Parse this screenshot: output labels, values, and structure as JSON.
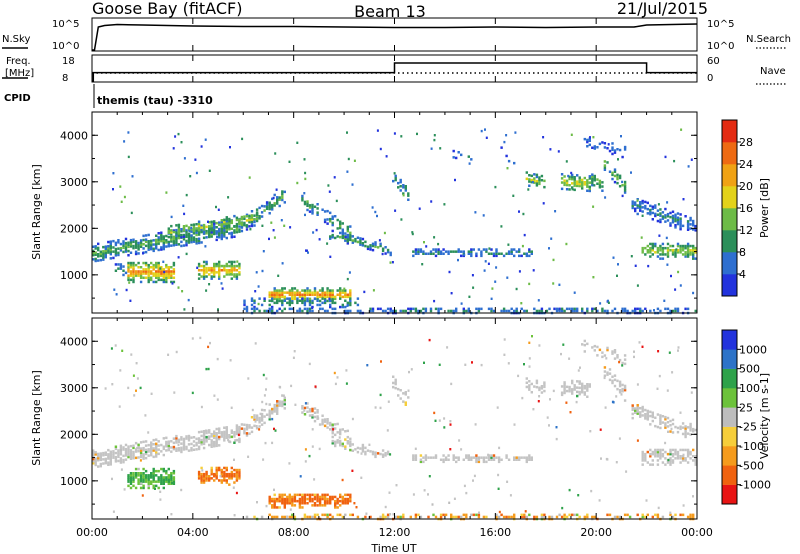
{
  "header": {
    "station": "Goose Bay (fitACF)",
    "beam": "Beam 13",
    "date": "21/Jul/2015"
  },
  "noise_panel": {
    "left_label": "N.Sky",
    "right_label": "N.Search",
    "ticks": [
      "10^5",
      "10^0"
    ]
  },
  "freq_panel": {
    "left_label_1": "Freq.",
    "left_label_2": "[MHz]",
    "right_label": "Nave",
    "left_ticks": [
      "18",
      "8"
    ],
    "right_ticks": [
      "60",
      "0"
    ]
  },
  "cpid": {
    "label": "CPID",
    "value": "themis (tau) -3310"
  },
  "x_axis": {
    "title": "Time UT",
    "ticks": [
      "00:00",
      "04:00",
      "08:00",
      "12:00",
      "16:00",
      "20:00",
      "00:00"
    ],
    "range_hours": [
      0,
      24
    ]
  },
  "y_axis_label": "Slant Range [km]",
  "y_ticks": [
    "1000",
    "2000",
    "3000",
    "4000"
  ],
  "colors": {
    "power": [
      "#2233dd",
      "#2e6fd0",
      "#2b8f5a",
      "#6dbb47",
      "#e3d21a",
      "#f0a214",
      "#ee6a12",
      "#e42b12"
    ],
    "velocity": [
      "#e81414",
      "#f0620f",
      "#f59b1c",
      "#f6ce3a",
      "#bdbdbd",
      "#6cc23a",
      "#2ea24a",
      "#2d73c8",
      "#2233dd"
    ],
    "gray": "#c4c4c4"
  },
  "power_colorbar": {
    "label": "Power [dB]",
    "ticks": [
      "4",
      "8",
      "12",
      "16",
      "20",
      "24",
      "28"
    ]
  },
  "velocity_colorbar": {
    "label": "Velocity [m s-1]",
    "ticks": [
      "1000",
      "500",
      "100",
      "25",
      "-25",
      "-100",
      "-500",
      "-1000"
    ]
  },
  "chart_data": [
    {
      "type": "line",
      "title": "N.Sky / N.Search",
      "x": [
        0.0,
        0.1,
        0.25,
        0.5,
        1,
        2,
        4,
        6,
        8,
        10,
        12,
        14,
        16,
        18,
        20,
        21.5,
        22,
        23,
        24
      ],
      "values": [
        0.0,
        0.0,
        4.6,
        4.9,
        5.1,
        5.0,
        4.8,
        4.7,
        4.7,
        4.6,
        4.5,
        4.5,
        4.6,
        4.5,
        4.6,
        4.6,
        5.0,
        5.1,
        5.2
      ],
      "ylim": [
        0,
        6
      ],
      "ylabel": "N.Sky"
    },
    {
      "type": "line",
      "title": "Freq / Nave",
      "series": [
        {
          "name": "Freq.",
          "x": [
            0.0,
            0.05,
            0.05,
            12.0,
            12.0,
            22.0,
            22.0,
            24.0
          ],
          "values": [
            8,
            8,
            11.5,
            11.5,
            15.5,
            15.5,
            11.5,
            11.5
          ]
        },
        {
          "name": "Nave",
          "x": [
            0,
            24
          ],
          "values": [
            20,
            20
          ]
        }
      ],
      "ylim_left": [
        8,
        18
      ],
      "ylim_right": [
        0,
        60
      ]
    },
    {
      "type": "heatmap",
      "title": "Power",
      "x_range_hours": [
        0,
        24
      ],
      "y_range_km": [
        180,
        4500
      ],
      "colorbar_label": "Power [dB]",
      "value_range": [
        0,
        32
      ],
      "features": [
        {
          "t": [
            0.0,
            5.8
          ],
          "r0": 1450,
          "r1": 2000,
          "w": 180,
          "v": 10,
          "d": 0.85
        },
        {
          "t": [
            5.8,
            7.6
          ],
          "r0": 2000,
          "r1": 2700,
          "w": 160,
          "v": 9,
          "d": 0.6
        },
        {
          "t": [
            3.0,
            6.5
          ],
          "r0": 1900,
          "r1": 2200,
          "w": 150,
          "v": 14,
          "d": 0.7
        },
        {
          "t": [
            1.4,
            3.3
          ],
          "r0": 1050,
          "r1": 1050,
          "w": 220,
          "v": 22,
          "d": 0.95
        },
        {
          "t": [
            0.9,
            1.4
          ],
          "r0": 1100,
          "r1": 1100,
          "w": 120,
          "v": 8,
          "d": 0.5
        },
        {
          "t": [
            4.2,
            5.8
          ],
          "r0": 1080,
          "r1": 1080,
          "w": 180,
          "v": 20,
          "d": 0.9
        },
        {
          "t": [
            7.0,
            10.2
          ],
          "r0": 560,
          "r1": 560,
          "w": 140,
          "v": 22,
          "d": 0.95
        },
        {
          "t": [
            6.0,
            10.5
          ],
          "r0": 400,
          "r1": 400,
          "w": 110,
          "v": 8,
          "d": 0.5
        },
        {
          "t": [
            6.0,
            24.0
          ],
          "r0": 220,
          "r1": 220,
          "w": 60,
          "v": 6,
          "d": 0.6
        },
        {
          "t": [
            8.3,
            10.2
          ],
          "r0": 2600,
          "r1": 1900,
          "w": 150,
          "v": 10,
          "d": 0.6
        },
        {
          "t": [
            9.4,
            11.8
          ],
          "r0": 1850,
          "r1": 1500,
          "w": 90,
          "v": 9,
          "d": 0.7
        },
        {
          "t": [
            12.7,
            17.5
          ],
          "r0": 1460,
          "r1": 1460,
          "w": 70,
          "v": 8,
          "d": 0.75
        },
        {
          "t": [
            11.9,
            12.5
          ],
          "r0": 3100,
          "r1": 2700,
          "w": 150,
          "v": 8,
          "d": 0.5
        },
        {
          "t": [
            17.2,
            18.0
          ],
          "r0": 3050,
          "r1": 2950,
          "w": 140,
          "v": 14,
          "d": 0.6
        },
        {
          "t": [
            18.6,
            19.8
          ],
          "r0": 3000,
          "r1": 2950,
          "w": 170,
          "v": 16,
          "d": 0.75
        },
        {
          "t": [
            19.8,
            20.3
          ],
          "r0": 3050,
          "r1": 2900,
          "w": 140,
          "v": 12,
          "d": 0.6
        },
        {
          "t": [
            20.3,
            21.2
          ],
          "r0": 3400,
          "r1": 2800,
          "w": 160,
          "v": 12,
          "d": 0.55
        },
        {
          "t": [
            21.4,
            24.0
          ],
          "r0": 2500,
          "r1": 2000,
          "w": 170,
          "v": 6,
          "d": 0.7
        },
        {
          "t": [
            21.8,
            24.0
          ],
          "r0": 1500,
          "r1": 1500,
          "w": 170,
          "v": 14,
          "d": 0.75
        },
        {
          "t": [
            19.4,
            21.2
          ],
          "r0": 3900,
          "r1": 3600,
          "w": 120,
          "v": 5,
          "d": 0.35
        },
        {
          "t": [
            16.2,
            16.8
          ],
          "r0": 3700,
          "r1": 3300,
          "w": 120,
          "v": 5,
          "d": 0.35
        },
        {
          "t": [
            14.2,
            15.0
          ],
          "r0": 3600,
          "r1": 3500,
          "w": 80,
          "v": 5,
          "d": 0.3
        }
      ]
    },
    {
      "type": "heatmap",
      "title": "Velocity",
      "x_range_hours": [
        0,
        24
      ],
      "y_range_km": [
        180,
        4500
      ],
      "colorbar_label": "Velocity [m s-1]",
      "value_range": [
        -1000,
        1000
      ],
      "features": [
        {
          "t": [
            0.0,
            5.8
          ],
          "r0": 1450,
          "r1": 2000,
          "w": 180,
          "v": 0,
          "d": 0.8
        },
        {
          "t": [
            5.8,
            7.6
          ],
          "r0": 2000,
          "r1": 2700,
          "w": 160,
          "v": 0,
          "d": 0.6
        },
        {
          "t": [
            1.4,
            3.3
          ],
          "r0": 1050,
          "r1": 1050,
          "w": 220,
          "v": 150,
          "d": 0.9
        },
        {
          "t": [
            4.2,
            5.8
          ],
          "r0": 1080,
          "r1": 1080,
          "w": 180,
          "v": -150,
          "d": 0.85
        },
        {
          "t": [
            7.0,
            10.2
          ],
          "r0": 560,
          "r1": 560,
          "w": 150,
          "v": -160,
          "d": 0.95
        },
        {
          "t": [
            6.0,
            24.0
          ],
          "r0": 220,
          "r1": 220,
          "w": 60,
          "v": -60,
          "d": 0.5
        },
        {
          "t": [
            8.3,
            10.2
          ],
          "r0": 2600,
          "r1": 1900,
          "w": 150,
          "v": 0,
          "d": 0.6
        },
        {
          "t": [
            9.4,
            11.8
          ],
          "r0": 1850,
          "r1": 1500,
          "w": 90,
          "v": 0,
          "d": 0.65
        },
        {
          "t": [
            12.7,
            17.5
          ],
          "r0": 1460,
          "r1": 1460,
          "w": 70,
          "v": 0,
          "d": 0.75
        },
        {
          "t": [
            11.9,
            12.5
          ],
          "r0": 3100,
          "r1": 2700,
          "w": 150,
          "v": 0,
          "d": 0.5
        },
        {
          "t": [
            17.2,
            18.0
          ],
          "r0": 3050,
          "r1": 2950,
          "w": 140,
          "v": 0,
          "d": 0.6
        },
        {
          "t": [
            18.6,
            19.8
          ],
          "r0": 3000,
          "r1": 2950,
          "w": 170,
          "v": 0,
          "d": 0.7
        },
        {
          "t": [
            20.3,
            21.2
          ],
          "r0": 3400,
          "r1": 2800,
          "w": 160,
          "v": 0,
          "d": 0.55
        },
        {
          "t": [
            21.4,
            24.0
          ],
          "r0": 2500,
          "r1": 2000,
          "w": 170,
          "v": 0,
          "d": 0.65
        },
        {
          "t": [
            21.8,
            24.0
          ],
          "r0": 1500,
          "r1": 1500,
          "w": 170,
          "v": 0,
          "d": 0.75
        },
        {
          "t": [
            19.4,
            21.2
          ],
          "r0": 3900,
          "r1": 3600,
          "w": 120,
          "v": 0,
          "d": 0.35
        }
      ]
    }
  ]
}
